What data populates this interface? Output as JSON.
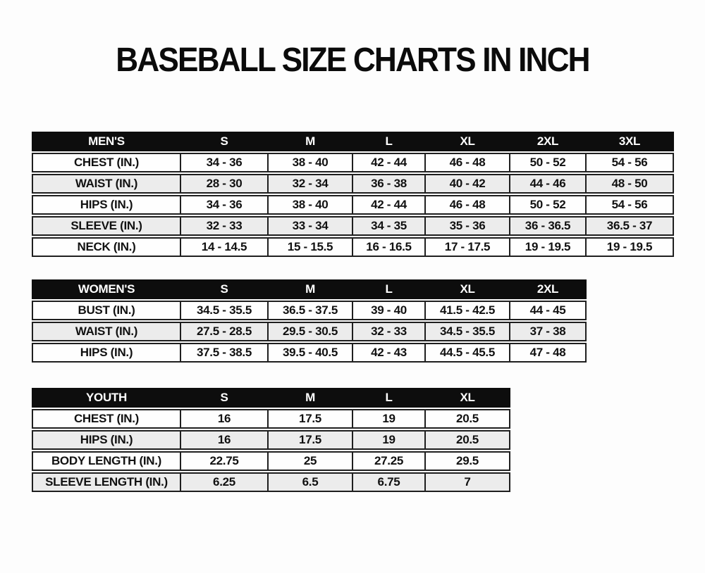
{
  "title": "BASEBALL SIZE CHARTS IN INCH",
  "colors": {
    "header_bg": "#0d0d0d",
    "header_text": "#ffffff",
    "row_bg": "#fefefe",
    "row_alt_bg": "#ececec",
    "border": "#1f1f1f",
    "page_bg": "#fdfdfd"
  },
  "chart_data": [
    {
      "type": "table",
      "name": "mens",
      "columns": [
        "MEN'S",
        "S",
        "M",
        "L",
        "XL",
        "2XL",
        "3XL"
      ],
      "rows": [
        [
          "CHEST (IN.)",
          "34 - 36",
          "38 - 40",
          "42 - 44",
          "46 - 48",
          "50 - 52",
          "54 - 56"
        ],
        [
          "WAIST (IN.)",
          "28 - 30",
          "32 - 34",
          "36 - 38",
          "40 - 42",
          "44 - 46",
          "48 - 50"
        ],
        [
          "HIPS (IN.)",
          "34 - 36",
          "38 - 40",
          "42 - 44",
          "46 - 48",
          "50 - 52",
          "54 - 56"
        ],
        [
          "SLEEVE (IN.)",
          "32 - 33",
          "33 - 34",
          "34 - 35",
          "35 - 36",
          "36 - 36.5",
          "36.5 - 37"
        ],
        [
          "NECK (IN.)",
          "14 - 14.5",
          "15 - 15.5",
          "16 - 16.5",
          "17 - 17.5",
          "19 - 19.5",
          "19 - 19.5"
        ]
      ]
    },
    {
      "type": "table",
      "name": "womens",
      "columns": [
        "WOMEN'S",
        "S",
        "M",
        "L",
        "XL",
        "2XL"
      ],
      "rows": [
        [
          "BUST (IN.)",
          "34.5 - 35.5",
          "36.5 - 37.5",
          "39 - 40",
          "41.5 - 42.5",
          "44 - 45"
        ],
        [
          "WAIST (IN.)",
          "27.5 - 28.5",
          "29.5 - 30.5",
          "32 - 33",
          "34.5 - 35.5",
          "37 - 38"
        ],
        [
          "HIPS (IN.)",
          "37.5 - 38.5",
          "39.5 - 40.5",
          "42 - 43",
          "44.5 - 45.5",
          "47 - 48"
        ]
      ]
    },
    {
      "type": "table",
      "name": "youth",
      "columns": [
        "YOUTH",
        "S",
        "M",
        "L",
        "XL"
      ],
      "rows": [
        [
          "CHEST (IN.)",
          "16",
          "17.5",
          "19",
          "20.5"
        ],
        [
          "HIPS (IN.)",
          "16",
          "17.5",
          "19",
          "20.5"
        ],
        [
          "BODY LENGTH (IN.)",
          "22.75",
          "25",
          "27.25",
          "29.5"
        ],
        [
          "SLEEVE LENGTH (IN.)",
          "6.25",
          "6.5",
          "6.75",
          "7"
        ]
      ]
    }
  ]
}
